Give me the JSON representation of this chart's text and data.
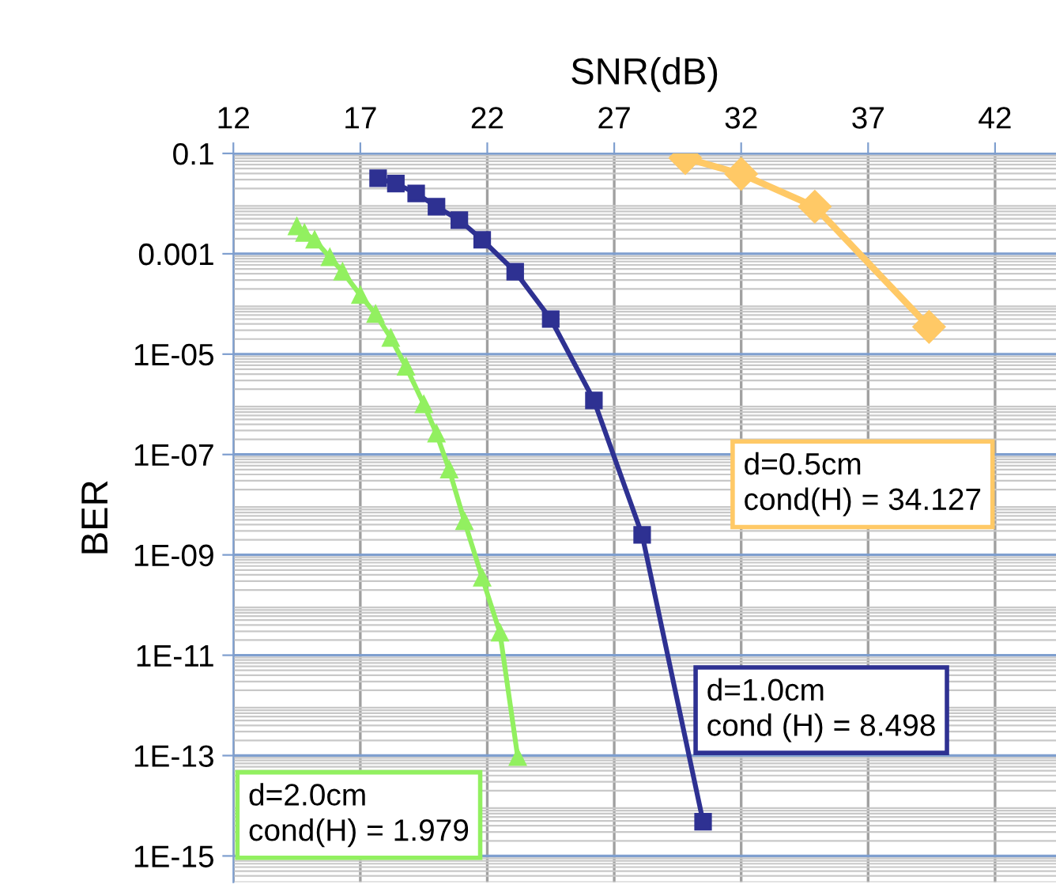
{
  "chart_data": {
    "type": "line",
    "xlabel": "SNR(dB)",
    "ylabel": "BER",
    "log": "y",
    "grid": true,
    "xlim": [
      12,
      44.4
    ],
    "xticks": [
      12,
      17,
      22,
      27,
      32,
      37,
      42
    ],
    "ylim": [
      3e-16,
      0.1
    ],
    "yticks": [
      0.1,
      0.001,
      {
        "value": 1e-05,
        "label": "1E-05"
      },
      {
        "value": 1e-07,
        "label": "1E-07"
      },
      {
        "value": 1e-09,
        "label": "1E-09"
      },
      {
        "value": 1e-11,
        "label": "1E-11"
      },
      {
        "value": 1e-13,
        "label": "1E-13"
      },
      {
        "value": 1e-15,
        "label": "1E-15"
      }
    ],
    "series": [
      {
        "name": "d=0.5cm\ncond(H) = 34.127",
        "color": "#ffc966",
        "marker": "diamond",
        "x": [
          29.8,
          32.0,
          34.9,
          39.4
        ],
        "values": [
          0.081,
          0.039,
          0.0087,
          3.5e-05
        ]
      },
      {
        "name": "d=1.0cm\ncond (H) = 8.498",
        "color": "#2e3192",
        "marker": "square",
        "x": [
          17.7,
          18.4,
          19.2,
          20.0,
          20.9,
          21.8,
          23.1,
          24.5,
          26.2,
          28.1,
          30.5
        ],
        "values": [
          0.032,
          0.025,
          0.016,
          0.0087,
          0.0047,
          0.0019,
          0.00044,
          5e-05,
          1.2e-06,
          2.5e-09,
          4.8e-15
        ]
      },
      {
        "name": "d=2.0cm\ncond(H) = 1.979",
        "color": "#92f060",
        "marker": "triangle",
        "x": [
          14.5,
          14.8,
          15.2,
          15.8,
          16.3,
          17.0,
          17.6,
          18.2,
          18.8,
          19.5,
          20.0,
          20.5,
          21.1,
          21.8,
          22.5,
          23.2
        ],
        "values": [
          0.0035,
          0.0026,
          0.0019,
          0.00085,
          0.00044,
          0.00015,
          6.3e-05,
          2.1e-05,
          5.6e-06,
          1e-06,
          2.6e-07,
          5e-08,
          4.7e-09,
          3.5e-10,
          2.8e-11,
          9.3e-14
        ]
      }
    ]
  }
}
